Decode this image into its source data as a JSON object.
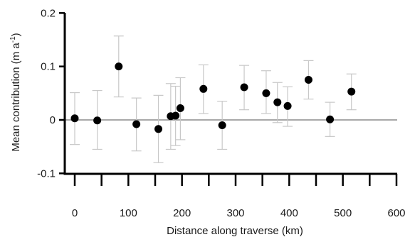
{
  "chart_data": {
    "type": "scatter",
    "xlabel": "Distance along traverse (km)",
    "ylabel": "Mean contribution (m a",
    "ylabel_sup": "-1",
    "ylabel_end": ")",
    "xlim": [
      0,
      600
    ],
    "ylim": [
      -0.1,
      0.2
    ],
    "xticks": [
      0,
      100,
      200,
      300,
      400,
      500,
      600
    ],
    "yticks": [
      -0.1,
      0,
      0.1,
      0.2
    ],
    "xtick_labels": [
      "0",
      "100",
      "200",
      "300",
      "400",
      "500",
      "600"
    ],
    "ytick_labels": [
      "-0.1",
      "0",
      "0.1",
      "0.2"
    ],
    "zero_line": true,
    "grid": false,
    "colors": {
      "marker": "#000000",
      "error_bar": "#c8c8c8",
      "zero_line": "#a8a8a8",
      "axis": "#000000"
    },
    "points": [
      {
        "x": 0,
        "y": 0.003,
        "lo": -0.046,
        "hi": 0.051
      },
      {
        "x": 42,
        "y": -0.001,
        "lo": -0.055,
        "hi": 0.055
      },
      {
        "x": 82,
        "y": 0.1,
        "lo": 0.043,
        "hi": 0.157
      },
      {
        "x": 115,
        "y": -0.008,
        "lo": -0.058,
        "hi": 0.041
      },
      {
        "x": 156,
        "y": -0.017,
        "lo": -0.08,
        "hi": 0.046
      },
      {
        "x": 179,
        "y": 0.007,
        "lo": -0.055,
        "hi": 0.068
      },
      {
        "x": 188,
        "y": 0.008,
        "lo": -0.048,
        "hi": 0.063
      },
      {
        "x": 197,
        "y": 0.022,
        "lo": -0.037,
        "hi": 0.079
      },
      {
        "x": 240,
        "y": 0.058,
        "lo": 0.012,
        "hi": 0.103
      },
      {
        "x": 275,
        "y": -0.01,
        "lo": -0.055,
        "hi": 0.035
      },
      {
        "x": 316,
        "y": 0.061,
        "lo": 0.019,
        "hi": 0.102
      },
      {
        "x": 357,
        "y": 0.05,
        "lo": 0.012,
        "hi": 0.092
      },
      {
        "x": 378,
        "y": 0.033,
        "lo": -0.005,
        "hi": 0.07
      },
      {
        "x": 397,
        "y": 0.026,
        "lo": -0.012,
        "hi": 0.062
      },
      {
        "x": 436,
        "y": 0.075,
        "lo": 0.039,
        "hi": 0.111
      },
      {
        "x": 476,
        "y": 0.001,
        "lo": -0.031,
        "hi": 0.033
      },
      {
        "x": 516,
        "y": 0.053,
        "lo": 0.019,
        "hi": 0.086
      }
    ]
  }
}
